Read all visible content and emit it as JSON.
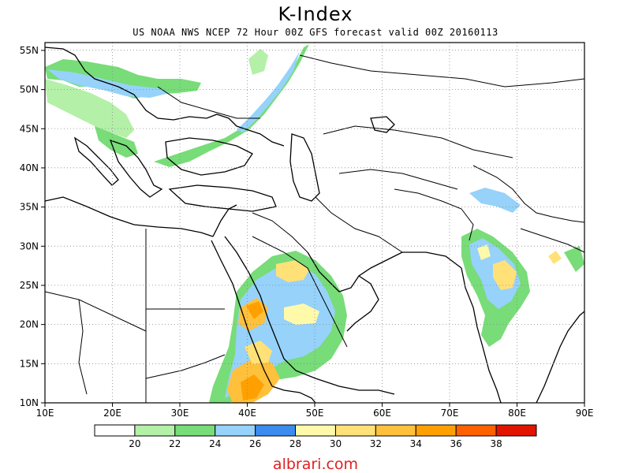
{
  "header": {
    "title": "K-Index",
    "subtitle": "US NOAA NWS NCEP 72 Hour 00Z GFS forecast valid 00Z 20160113"
  },
  "map": {
    "lon_range": [
      10,
      90
    ],
    "lat_range": [
      10,
      56
    ],
    "x_ticks": [
      "10E",
      "20E",
      "30E",
      "40E",
      "50E",
      "60E",
      "70E",
      "80E",
      "90E"
    ],
    "y_ticks": [
      "10N",
      "15N",
      "20N",
      "25N",
      "30N",
      "35N",
      "40N",
      "45N",
      "50N",
      "55N"
    ],
    "grid": "dotted"
  },
  "legend": {
    "labels": [
      "20",
      "22",
      "24",
      "26",
      "28",
      "30",
      "32",
      "34",
      "36",
      "38"
    ],
    "colors": [
      "#ffffff",
      "#b4f0a8",
      "#78dc78",
      "#96d2fa",
      "#3c8cf0",
      "#fffaaa",
      "#ffe178",
      "#ffc03c",
      "#ffa000",
      "#ff6000",
      "#e11400"
    ]
  },
  "credit": "albrari.com"
}
